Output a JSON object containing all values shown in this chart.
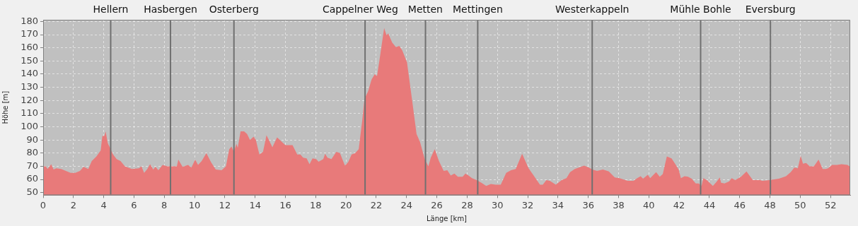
{
  "chart_data": {
    "type": "area",
    "xlabel": "Länge [km]",
    "ylabel": "Höhe [m]",
    "xlim": [
      0,
      53.3
    ],
    "ylim": [
      48,
      181.3
    ],
    "xticks": [
      0,
      2,
      4,
      6,
      8,
      10,
      12,
      14,
      16,
      18,
      20,
      22,
      24,
      26,
      28,
      30,
      32,
      34,
      36,
      38,
      40,
      42,
      44,
      46,
      48,
      50,
      52
    ],
    "yticks": [
      50,
      60,
      70,
      80,
      90,
      100,
      110,
      120,
      130,
      140,
      150,
      160,
      170,
      180
    ],
    "grid": true,
    "legend": false,
    "series": [
      {
        "color": "#e87a7a",
        "x": [
          0,
          0.17,
          0.3,
          0.53,
          0.69,
          0.87,
          1.19,
          1.5,
          1.81,
          2.12,
          2.43,
          2.67,
          2.98,
          3.21,
          3.52,
          3.8,
          3.91,
          4.04,
          4.13,
          4.27,
          4.62,
          4.85,
          5.11,
          5.4,
          5.86,
          6.33,
          6.49,
          6.67,
          6.88,
          7.06,
          7.27,
          7.42,
          7.61,
          7.89,
          8.2,
          8.83,
          8.93,
          9.21,
          9.57,
          9.79,
          10.04,
          10.23,
          10.47,
          10.78,
          11.09,
          11.4,
          11.79,
          12.07,
          12.29,
          12.44,
          12.6,
          12.76,
          12.85,
          13.04,
          13.27,
          13.47,
          13.66,
          13.9,
          14.05,
          14.28,
          14.52,
          14.75,
          14.91,
          15.14,
          15.45,
          15.77,
          16.0,
          16.47,
          16.78,
          16.99,
          17.17,
          17.4,
          17.59,
          17.79,
          18.03,
          18.19,
          18.5,
          18.62,
          18.78,
          19.04,
          19.36,
          19.6,
          19.93,
          20.14,
          20.37,
          20.61,
          20.84,
          21.07,
          21.22,
          21.46,
          21.69,
          21.9,
          22.05,
          22.24,
          22.52,
          22.68,
          22.79,
          23.05,
          23.3,
          23.52,
          23.72,
          24.03,
          24.34,
          24.66,
          24.89,
          25.2,
          25.44,
          25.6,
          25.86,
          26.14,
          26.45,
          26.69,
          26.92,
          27.16,
          27.39,
          27.7,
          27.89,
          28.09,
          28.32,
          28.63,
          28.94,
          29.26,
          29.57,
          29.88,
          30.22,
          30.58,
          30.9,
          31.21,
          31.63,
          32.06,
          32.45,
          32.81,
          33.0,
          33.23,
          33.46,
          33.86,
          34.24,
          34.56,
          34.8,
          35.11,
          35.73,
          36.04,
          36.27,
          36.58,
          36.97,
          37.36,
          37.75,
          38.06,
          38.6,
          38.99,
          39.23,
          39.46,
          39.62,
          39.93,
          40.09,
          40.48,
          40.72,
          40.92,
          41.19,
          41.5,
          41.73,
          41.97,
          42.12,
          42.36,
          42.59,
          42.83,
          43.1,
          43.29,
          43.48,
          43.6,
          43.83,
          44.23,
          44.46,
          44.69,
          44.77,
          45.0,
          45.31,
          45.47,
          45.7,
          46.09,
          46.45,
          46.87,
          47.34,
          47.5,
          47.96,
          48.59,
          49.06,
          49.37,
          49.61,
          49.84,
          50.03,
          50.18,
          50.39,
          50.62,
          50.9,
          51.21,
          51.48,
          51.68,
          51.84,
          52.1,
          52.42,
          52.73,
          53.12,
          53.3
        ],
        "values": [
          70,
          70,
          68,
          71.5,
          67.5,
          68.5,
          68,
          66.5,
          65,
          65,
          66.5,
          69.5,
          68,
          74,
          77.5,
          82,
          93,
          93,
          96.5,
          87.5,
          79,
          75.5,
          74,
          70,
          68,
          68.5,
          70,
          65,
          68,
          71.5,
          67.5,
          69.5,
          67,
          71,
          70,
          70,
          75,
          69.5,
          71,
          69,
          75,
          71,
          74,
          80,
          73,
          67.5,
          67,
          70,
          83,
          85,
          81,
          87,
          84,
          96.5,
          96.5,
          94.5,
          90,
          92.5,
          90,
          79,
          81,
          93.5,
          90,
          84.5,
          92,
          88.5,
          86,
          86,
          79,
          79,
          76.5,
          76,
          71.5,
          76,
          75.5,
          73.5,
          75.5,
          79.5,
          76.5,
          75.5,
          81,
          80,
          70.5,
          73,
          79,
          80,
          83,
          104.5,
          121,
          127,
          136,
          140,
          138.5,
          153,
          175,
          169.5,
          171,
          164,
          160.5,
          161.5,
          158,
          149,
          122.5,
          94.5,
          88.5,
          75.5,
          70,
          76.5,
          83,
          74,
          66.5,
          67,
          63,
          64.5,
          62,
          62,
          64.5,
          63,
          61,
          59.5,
          57.5,
          55,
          56.5,
          56,
          56,
          65,
          67,
          68,
          79.5,
          68.5,
          62,
          56,
          56,
          59.5,
          59,
          56,
          59.5,
          61,
          65.5,
          68,
          70.5,
          69,
          67.5,
          66.5,
          67.5,
          66,
          61.5,
          61,
          59,
          59,
          61,
          62.5,
          60.5,
          63.5,
          61,
          65.5,
          62,
          64,
          77.5,
          76,
          72,
          67.5,
          61,
          62.5,
          62,
          60.5,
          57,
          57,
          55,
          61,
          59.5,
          55,
          58,
          61.5,
          57.5,
          57,
          58.5,
          61,
          59.5,
          62,
          66,
          59.5,
          59.5,
          59,
          59.5,
          60.5,
          62.5,
          65.5,
          69,
          68.5,
          78,
          72,
          72.5,
          70,
          70,
          75,
          68,
          68,
          68.5,
          71,
          71,
          71.5,
          71,
          69.5
        ]
      }
    ],
    "ref_lines": [
      {
        "axis": "x",
        "value": 4.46,
        "label": "Hellern",
        "color": "#707070"
      },
      {
        "axis": "x",
        "value": 8.41,
        "label": "Hasbergen",
        "color": "#707070"
      },
      {
        "axis": "x",
        "value": 12.6,
        "label": "Osterberg",
        "color": "#707070"
      },
      {
        "axis": "x",
        "value": 21.26,
        "label": "Cappelner Weg",
        "color": "#707070"
      },
      {
        "axis": "x",
        "value": 25.25,
        "label": "Metten",
        "color": "#707070"
      },
      {
        "axis": "x",
        "value": 28.7,
        "label": "Mettingen",
        "color": "#707070"
      },
      {
        "axis": "x",
        "value": 36.26,
        "label": "Westerkappeln",
        "color": "#707070"
      },
      {
        "axis": "x",
        "value": 43.42,
        "label": "Mühle Bohle",
        "color": "#707070"
      },
      {
        "axis": "x",
        "value": 48.03,
        "label": "Eversburg",
        "color": "#707070"
      }
    ]
  }
}
